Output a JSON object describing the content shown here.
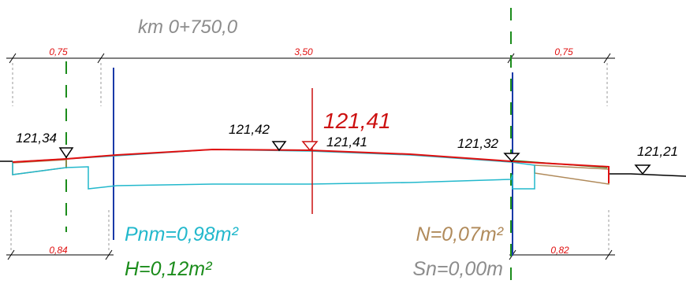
{
  "station": "km 0+750,0",
  "dimensions": {
    "top": [
      "0,75",
      "3,50",
      "0,75"
    ],
    "bottom": [
      "0,84",
      "0,82"
    ]
  },
  "elevations": {
    "left_edge": "121,34",
    "mid_left": "121,42",
    "axis_main": "121,41",
    "axis_small": "121,41",
    "right_edge": "121,32",
    "terrain_right": "121,21"
  },
  "areas": {
    "pnm": "Pnm=0,98m²",
    "h": "H=0,12m²",
    "n": "N=0,07m²",
    "sn": "Sn=0,00m"
  },
  "colors": {
    "pnm": "#22b8cc",
    "h": "#1b8c1b",
    "n": "#b08a5a",
    "sn": "#8c8c8c",
    "design_line": "#e01010",
    "axis": "#cc1010",
    "edge_lines": "#1a3aa8",
    "dim_text": "#e01010"
  }
}
